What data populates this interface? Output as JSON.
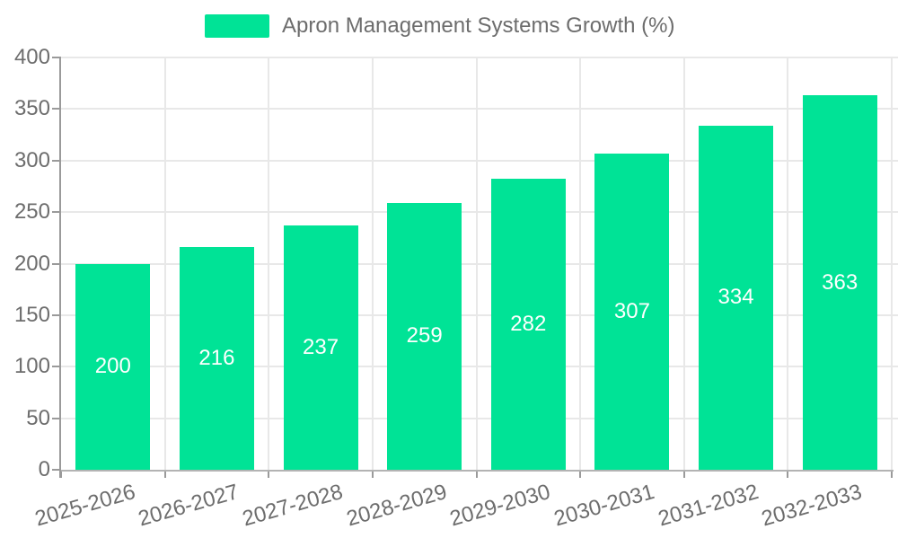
{
  "legend": {
    "label": "Apron Management Systems Growth (%)"
  },
  "colors": {
    "bar": "#00E396",
    "grid": "#e8e8e8",
    "axis": "#9a9a9a",
    "axis_bottom": "#b3b3b3",
    "text": "#6d6d6d",
    "value_text": "#ffffff"
  },
  "chart_data": {
    "type": "bar",
    "title": "Apron Management Systems Growth (%)",
    "categories": [
      "2025-2026",
      "2026-2027",
      "2027-2028",
      "2028-2029",
      "2029-2030",
      "2030-2031",
      "2031-2032",
      "2032-2033"
    ],
    "values": [
      200,
      216,
      237,
      259,
      282,
      307,
      334,
      363
    ],
    "xlabel": "",
    "ylabel": "",
    "ylim": [
      0,
      400
    ],
    "yticks": [
      0,
      50,
      100,
      150,
      200,
      250,
      300,
      350,
      400
    ],
    "grid": true,
    "legend_position": "top-center",
    "value_labels": "inside-center",
    "xlabel_rotation_deg": -16
  }
}
